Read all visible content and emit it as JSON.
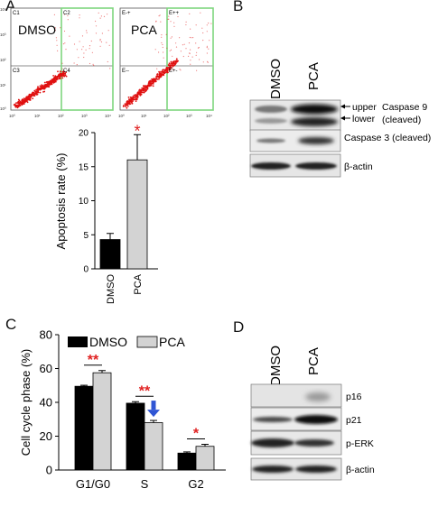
{
  "panels": {
    "a": "A",
    "b": "B",
    "c": "C",
    "d": "D"
  },
  "flow": {
    "left": {
      "label": "DMSO",
      "quadrants": [
        "C1",
        "C2",
        "C3",
        "C4"
      ]
    },
    "right": {
      "label": "PCA",
      "quadrants": [
        "E-+",
        "E++",
        "E--",
        "E+-"
      ]
    },
    "axis_ticks_y": [
      "10⁴",
      "10³",
      "10²",
      "10¹",
      "10⁰"
    ],
    "axis_ticks_x": [
      "10⁰",
      "10¹",
      "10²",
      "10³",
      "10⁴"
    ],
    "gate_color": "#7ed67e",
    "dot_color": "#e01010"
  },
  "blot_b": {
    "lanes": [
      "DMSO",
      "PCA"
    ],
    "annotations": {
      "upper": "upper",
      "lower": "lower",
      "caspase9": "Caspase 9",
      "cleaved": "(cleaved)",
      "caspase3": "Caspase 3 (cleaved)",
      "actin": "β-actin"
    }
  },
  "blot_d": {
    "lanes": [
      "DMSO",
      "PCA"
    ],
    "labels": [
      "p16",
      "p21",
      "p-ERK",
      "β-actin"
    ]
  },
  "chart_data": [
    {
      "type": "bar",
      "panel": "A",
      "categories": [
        "DMSO",
        "PCA"
      ],
      "values": [
        4.3,
        16.0
      ],
      "errors": [
        0.9,
        3.7
      ],
      "ylabel": "Apoptosis rate (%)",
      "ylim": [
        0,
        20
      ],
      "yticks": [
        "0",
        "5",
        "10",
        "15",
        "20"
      ],
      "colors": [
        "#000000",
        "#d3d3d3"
      ],
      "significance": [
        {
          "category": "PCA",
          "mark": "*",
          "color": "#e02020"
        }
      ]
    },
    {
      "type": "bar",
      "panel": "C",
      "categories": [
        "G1/G0",
        "S",
        "G2"
      ],
      "series": [
        {
          "name": "DMSO",
          "values": [
            49.5,
            39.5,
            10.0
          ],
          "errors": [
            0.6,
            0.9,
            0.7
          ],
          "color": "#000000"
        },
        {
          "name": "PCA",
          "values": [
            57.5,
            28.0,
            14.0
          ],
          "errors": [
            1.3,
            1.3,
            1.2
          ],
          "color": "#d3d3d3"
        }
      ],
      "ylabel": "Cell cycle phase (%)",
      "ylim": [
        0,
        80
      ],
      "yticks": [
        "0",
        "20",
        "40",
        "60",
        "80"
      ],
      "legend": "top",
      "significance": [
        {
          "category": "G1/G0",
          "mark": "**"
        },
        {
          "category": "S",
          "mark": "**"
        },
        {
          "category": "G2",
          "mark": "*"
        }
      ],
      "significance_color": "#e02020",
      "arrow_color": "#2f55d4"
    }
  ]
}
